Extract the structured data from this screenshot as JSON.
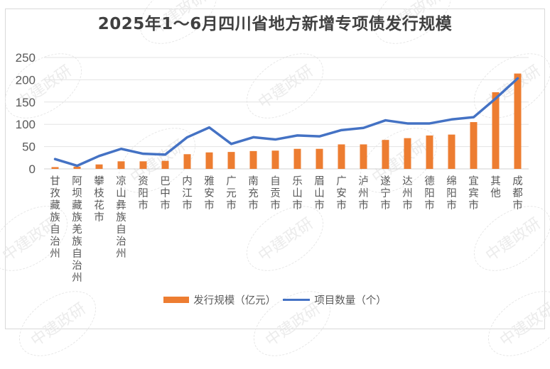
{
  "chart_data": {
    "type": "bar",
    "title": "2025年1～6月四川省地方新增专项债发行规模",
    "xlabel": "",
    "ylabel": "",
    "ylim": [
      0,
      250
    ],
    "yticks": [
      0,
      50,
      100,
      150,
      200,
      250
    ],
    "grid": true,
    "legend_position": "bottom",
    "categories": [
      "甘孜藏族自治州",
      "阿坝藏族羌族自治州",
      "攀枝花市",
      "凉山彝族自治州",
      "资阳市",
      "巴中市",
      "内江市",
      "雅安市",
      "广元市",
      "南充市",
      "自贡市",
      "乐山市",
      "眉山市",
      "广安市",
      "泸州市",
      "遂宁市",
      "达州市",
      "德阳市",
      "绵阳市",
      "宜宾市",
      "其他",
      "成都市"
    ],
    "series": [
      {
        "name": "发行规模（亿元）",
        "type": "bar",
        "color": "#ed7d31",
        "values": [
          4,
          5,
          10,
          17,
          17,
          18,
          33,
          37,
          38,
          40,
          41,
          45,
          45,
          55,
          55,
          65,
          69,
          75,
          77,
          105,
          172,
          214
        ]
      },
      {
        "name": "项目数量（个）",
        "type": "line",
        "color": "#4472c4",
        "values": [
          22,
          7,
          29,
          45,
          34,
          32,
          71,
          93,
          56,
          71,
          66,
          75,
          73,
          87,
          92,
          109,
          102,
          102,
          111,
          116,
          158,
          203
        ]
      }
    ]
  },
  "title": "2025年1～6月四川省地方新增专项债发行规模",
  "legend": {
    "bar_label": "发行规模（亿元）",
    "line_label": "项目数量（个）"
  },
  "watermark": "中建政研"
}
